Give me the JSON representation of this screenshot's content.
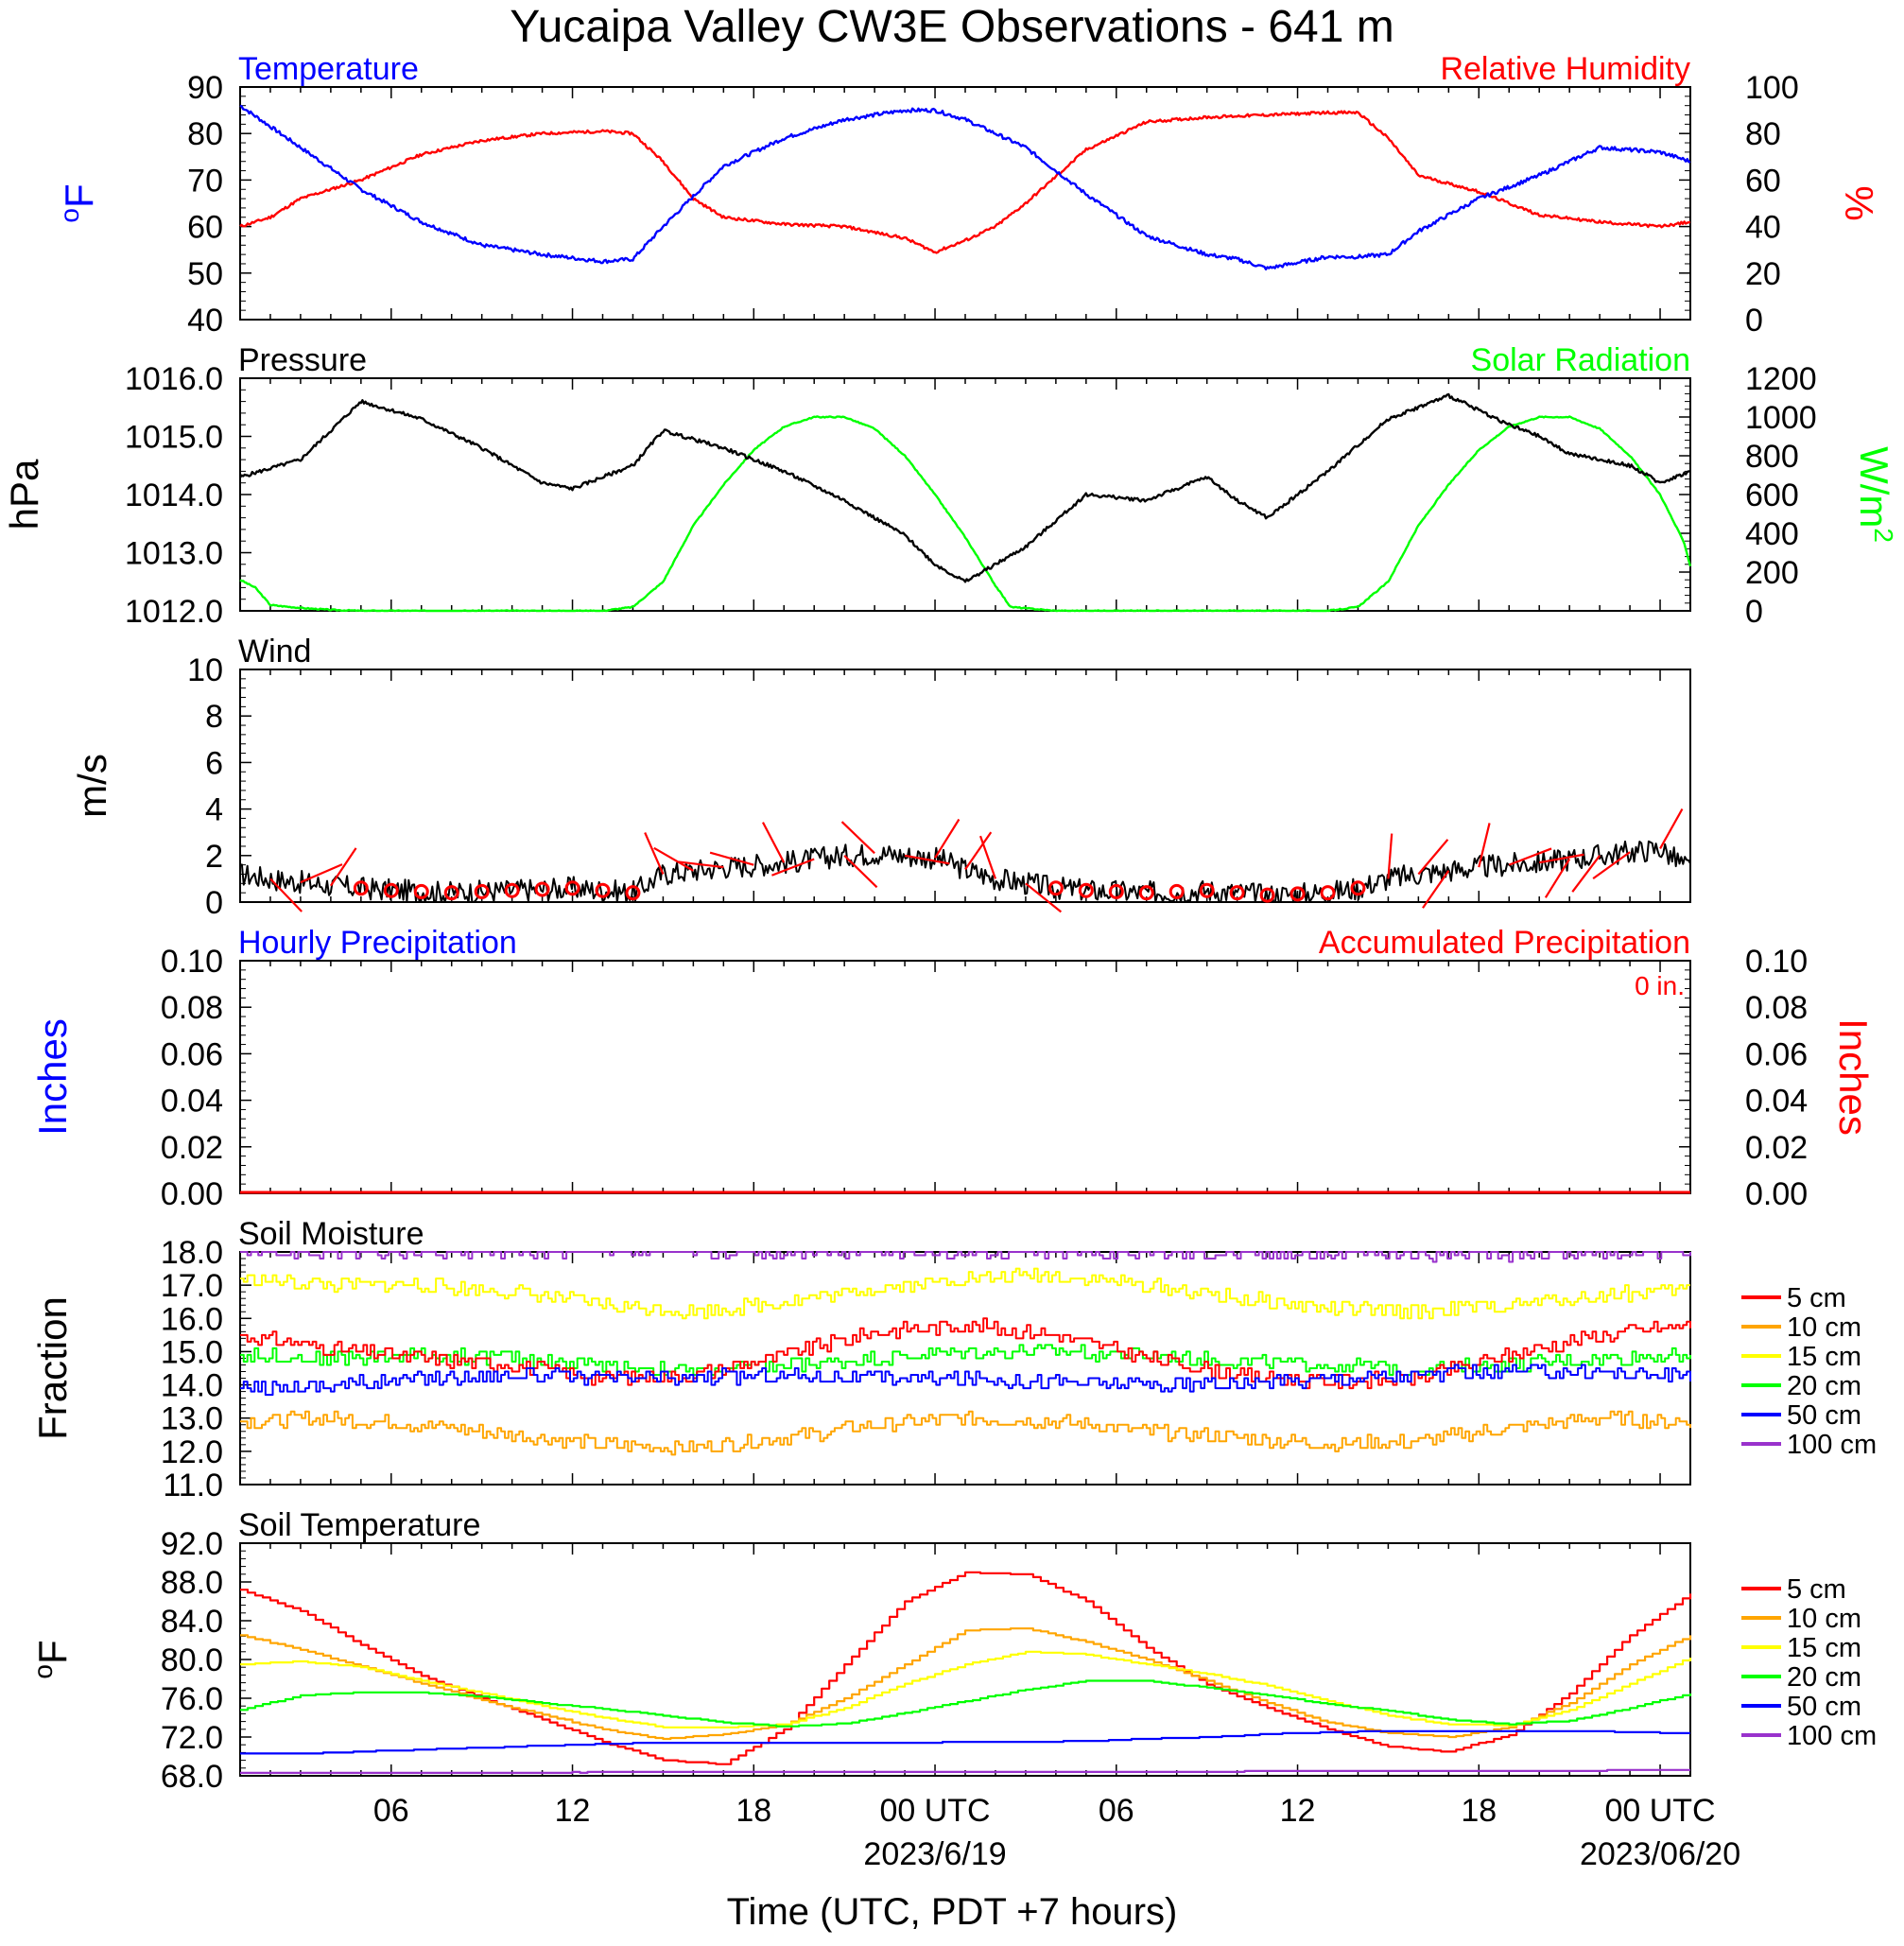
{
  "title": "Yucaipa Valley CW3E Observations - 641 m",
  "x_axis": {
    "label": "Time (UTC, PDT +7 hours)",
    "tick_labels": [
      "06",
      "12",
      "18",
      "00 UTC",
      "06",
      "12",
      "18",
      "00 UTC"
    ],
    "tick_hours": [
      6,
      12,
      18,
      24,
      30,
      36,
      42,
      48
    ],
    "date_labels": [
      "2023/6/19",
      "2023/06/20"
    ],
    "date_hours": [
      24,
      48
    ],
    "range_hours": [
      1,
      49
    ]
  },
  "colors": {
    "temperature": "#0000ff",
    "humidity": "#ff0000",
    "pressure": "#000000",
    "solar": "#00ff00",
    "wind": "#000000",
    "wind_barb": "#ff0000",
    "depth_5cm": "#ff0000",
    "depth_10cm": "#ffa500",
    "depth_15cm": "#ffff00",
    "depth_20cm": "#00ff00",
    "depth_50cm": "#0000ff",
    "depth_100cm": "#9932cc"
  },
  "panels": {
    "temp_rh": {
      "left_title": "Temperature",
      "right_title": "Relative Humidity",
      "left_unit": "F",
      "left_unit_sup": "o",
      "right_unit": "%",
      "left_ticks": [
        "90",
        "80",
        "70",
        "60",
        "50",
        "40"
      ],
      "right_ticks": [
        "100",
        "80",
        "60",
        "40",
        "20",
        "0"
      ]
    },
    "pressure_solar": {
      "left_title": "Pressure",
      "right_title": "Solar Radiation",
      "left_unit": "hPa",
      "right_unit": "W/m",
      "right_unit_sup": "2",
      "left_ticks": [
        "1016.0",
        "1015.0",
        "1014.0",
        "1013.0",
        "1012.0"
      ],
      "right_ticks": [
        "1200",
        "1000",
        "800",
        "600",
        "400",
        "200",
        "0"
      ]
    },
    "wind": {
      "left_title": "Wind",
      "left_unit": "m/s",
      "left_ticks": [
        "10",
        "8",
        "6",
        "4",
        "2",
        "0"
      ]
    },
    "precip": {
      "left_title": "Hourly Precipitation",
      "right_title": "Accumulated Precipitation",
      "total_label": "0 in.",
      "left_unit": "Inches",
      "right_unit": "Inches",
      "left_ticks": [
        "0.10",
        "0.08",
        "0.06",
        "0.04",
        "0.02",
        "0.00"
      ],
      "right_ticks": [
        "0.10",
        "0.08",
        "0.06",
        "0.04",
        "0.02",
        "0.00"
      ]
    },
    "soil_moisture": {
      "left_title": "Soil Moisture",
      "left_unit": "Fraction",
      "left_ticks": [
        "18.0",
        "17.0",
        "16.0",
        "15.0",
        "14.0",
        "13.0",
        "12.0",
        "11.0"
      ],
      "legend": [
        "5 cm",
        "10 cm",
        "15 cm",
        "20 cm",
        "50 cm",
        "100 cm"
      ]
    },
    "soil_temp": {
      "left_title": "Soil Temperature",
      "left_unit": "F",
      "left_unit_sup": "o",
      "left_ticks": [
        "92.0",
        "88.0",
        "84.0",
        "80.0",
        "76.0",
        "72.0",
        "68.0"
      ],
      "legend": [
        "5 cm",
        "10 cm",
        "15 cm",
        "20 cm",
        "50 cm",
        "100 cm"
      ]
    }
  },
  "chart_data": [
    {
      "type": "line",
      "panel": "temp_rh",
      "title": "Temperature",
      "ylabel": "F",
      "ylim": [
        40,
        90
      ],
      "series": [
        {
          "name": "Temperature",
          "x": [
            1,
            3,
            5,
            7,
            9,
            11,
            13,
            14,
            15,
            17,
            19,
            21,
            23,
            24,
            25,
            27,
            29,
            31,
            33,
            34,
            35,
            37,
            38,
            39,
            40,
            42,
            44,
            46,
            48,
            49
          ],
          "values": [
            86,
            77,
            68,
            61,
            56,
            54,
            52.5,
            53,
            60,
            73,
            79,
            83,
            85,
            85,
            83,
            77,
            67,
            58,
            54,
            53,
            51,
            53.5,
            53.5,
            54,
            59,
            66,
            71,
            77,
            76,
            74
          ]
        }
      ]
    },
    {
      "type": "line",
      "panel": "temp_rh",
      "title": "Relative Humidity",
      "ylabel": "%",
      "ylim": [
        0,
        100
      ],
      "series": [
        {
          "name": "Relative Humidity",
          "x": [
            1,
            2,
            3,
            5,
            7,
            9,
            11,
            13,
            14,
            15,
            16,
            17,
            19,
            21,
            23,
            24,
            25,
            26,
            27,
            29,
            31,
            33,
            35,
            37,
            38,
            39,
            40,
            42,
            44,
            46,
            48,
            49
          ],
          "values": [
            40,
            44,
            52,
            60,
            71,
            77,
            80,
            81,
            80,
            68,
            52,
            44,
            41,
            40,
            35,
            29,
            34,
            40,
            50,
            73,
            85,
            87,
            88,
            89,
            89,
            78,
            62,
            55,
            45,
            42,
            40,
            42
          ]
        }
      ]
    },
    {
      "type": "line",
      "panel": "pressure_solar",
      "title": "Pressure",
      "ylabel": "hPa",
      "ylim": [
        1012,
        1016
      ],
      "series": [
        {
          "name": "Pressure",
          "x": [
            1,
            3,
            5,
            7,
            9,
            11,
            12,
            13,
            14,
            15,
            17,
            19,
            21,
            23,
            24,
            25,
            27,
            29,
            31,
            33,
            34,
            35,
            37,
            39,
            41,
            43,
            44,
            45,
            47,
            48,
            49
          ],
          "values": [
            1014.3,
            1014.6,
            1015.6,
            1015.3,
            1014.8,
            1014.2,
            1014.1,
            1014.3,
            1014.5,
            1015.1,
            1014.8,
            1014.4,
            1013.9,
            1013.3,
            1012.8,
            1012.5,
            1013.1,
            1014,
            1013.9,
            1014.3,
            1013.9,
            1013.6,
            1014.4,
            1015.3,
            1015.7,
            1015.2,
            1015,
            1014.7,
            1014.5,
            1014.2,
            1014.4
          ]
        }
      ]
    },
    {
      "type": "line",
      "panel": "pressure_solar",
      "title": "Solar Radiation",
      "ylabel": "W/m2",
      "ylim": [
        0,
        1200
      ],
      "series": [
        {
          "name": "Solar Radiation",
          "x": [
            1,
            1.5,
            2,
            3,
            4,
            5,
            10,
            13,
            14,
            15,
            16,
            17,
            18,
            19,
            20,
            21,
            22,
            23,
            24,
            25,
            26,
            26.5,
            28,
            30,
            35,
            36,
            37,
            38,
            39,
            40,
            41,
            42,
            43,
            44,
            45,
            46,
            47,
            48,
            48.8,
            49
          ],
          "values": [
            160,
            120,
            30,
            15,
            5,
            0,
            0,
            0,
            20,
            150,
            440,
            650,
            830,
            950,
            1000,
            1000,
            940,
            800,
            600,
            380,
            130,
            20,
            0,
            0,
            0,
            0,
            0,
            20,
            150,
            440,
            650,
            830,
            950,
            1000,
            1000,
            940,
            800,
            600,
            350,
            230
          ]
        }
      ]
    },
    {
      "type": "line",
      "panel": "wind",
      "title": "Wind",
      "ylabel": "m/s",
      "ylim": [
        0,
        10
      ],
      "series": [
        {
          "name": "Wind speed",
          "x": [
            1,
            2,
            4,
            6,
            8,
            10,
            12,
            13,
            14,
            15,
            17,
            19,
            21,
            22,
            23,
            24,
            25,
            26,
            27,
            28,
            29,
            31,
            33,
            35,
            37,
            38,
            39,
            40,
            42,
            44,
            46,
            48,
            49
          ],
          "values": [
            1.2,
            1.0,
            0.7,
            0.5,
            0.4,
            0.5,
            0.6,
            0.5,
            0.4,
            1.2,
            1.5,
            1.7,
            2.0,
            2.1,
            2.0,
            1.9,
            1.4,
            1.0,
            0.8,
            0.6,
            0.5,
            0.4,
            0.5,
            0.3,
            0.4,
            0.6,
            1.0,
            1.2,
            1.5,
            1.7,
            2.0,
            2.3,
            1.4
          ]
        }
      ]
    },
    {
      "type": "bar",
      "panel": "precip",
      "title": "Hourly Precipitation",
      "ylabel": "Inches",
      "ylim": [
        0,
        0.1
      ],
      "series": [
        {
          "name": "Hourly Precipitation",
          "values": [
            0
          ]
        },
        {
          "name": "Accumulated Precipitation",
          "values": [
            0
          ]
        }
      ]
    },
    {
      "type": "line",
      "panel": "soil_moisture",
      "title": "Soil Moisture",
      "ylabel": "Fraction",
      "ylim": [
        11,
        18
      ],
      "x": [
        1,
        4,
        7,
        10,
        13,
        16,
        19,
        22,
        25,
        28,
        31,
        34,
        37,
        40,
        43,
        46,
        49
      ],
      "series": [
        {
          "name": "5 cm",
          "values": [
            15.5,
            15.1,
            14.8,
            14.6,
            14.2,
            14.3,
            14.9,
            15.6,
            15.8,
            15.5,
            14.8,
            14.3,
            14.1,
            14.2,
            14.9,
            15.5,
            15.8
          ]
        },
        {
          "name": "10 cm",
          "values": [
            12.9,
            13.0,
            12.8,
            12.5,
            12.2,
            12.1,
            12.4,
            12.8,
            13.0,
            12.9,
            12.6,
            12.4,
            12.2,
            12.3,
            12.7,
            13.0,
            12.9
          ]
        },
        {
          "name": "15 cm",
          "values": [
            17.2,
            17.0,
            17.0,
            16.8,
            16.4,
            16.2,
            16.5,
            16.9,
            17.2,
            17.3,
            17.0,
            16.6,
            16.3,
            16.2,
            16.4,
            16.7,
            16.9
          ]
        },
        {
          "name": "20 cm",
          "values": [
            14.9,
            14.8,
            14.9,
            14.8,
            14.6,
            14.4,
            14.6,
            14.8,
            15.0,
            15.0,
            14.9,
            14.7,
            14.6,
            14.5,
            14.6,
            14.8,
            14.9
          ]
        },
        {
          "name": "50 cm",
          "values": [
            13.9,
            14.0,
            14.2,
            14.3,
            14.2,
            14.2,
            14.3,
            14.2,
            14.2,
            14.1,
            14.0,
            14.0,
            14.2,
            14.3,
            14.4,
            14.4,
            14.3
          ]
        },
        {
          "name": "100 cm",
          "values": [
            18.0,
            18.0,
            18.0,
            18.0,
            18.0,
            18.0,
            18.0,
            18.0,
            18.0,
            18.0,
            18.0,
            18.0,
            17.95,
            17.95,
            17.95,
            18.0,
            18.0
          ]
        }
      ]
    },
    {
      "type": "line",
      "panel": "soil_temp",
      "title": "Soil Temperature",
      "ylabel": "F",
      "ylim": [
        68,
        92
      ],
      "x": [
        1,
        3,
        5,
        7,
        9,
        11,
        13,
        15,
        17,
        19,
        21,
        23,
        25,
        27,
        29,
        31,
        33,
        35,
        37,
        39,
        41,
        43,
        45,
        47,
        49
      ],
      "series": [
        {
          "name": "5 cm",
          "values": [
            87.2,
            85,
            81.5,
            78.3,
            76,
            73.8,
            71.5,
            69.6,
            69.2,
            72.8,
            79.5,
            86,
            89,
            88.8,
            86,
            81.2,
            77.4,
            75,
            72.8,
            71,
            70.5,
            72.2,
            76.5,
            82.5,
            86.8
          ]
        },
        {
          "name": "10 cm",
          "values": [
            82.5,
            81,
            79.3,
            77.5,
            75.8,
            74.3,
            72.8,
            71.8,
            72.3,
            73.2,
            76,
            79.5,
            83,
            83.2,
            81.8,
            80,
            77.8,
            75.5,
            73.5,
            72.4,
            72,
            73,
            75.5,
            79.5,
            82.5
          ]
        },
        {
          "name": "15 cm",
          "values": [
            79.5,
            79.8,
            79.2,
            77.8,
            76.5,
            75.2,
            74,
            73,
            73,
            73.3,
            75,
            77.5,
            79.5,
            80.8,
            80.5,
            79.5,
            78.5,
            77.3,
            75.7,
            74.2,
            73.3,
            73.2,
            74.8,
            77.5,
            80.2
          ]
        },
        {
          "name": "20 cm",
          "values": [
            74.8,
            76.3,
            76.6,
            76.6,
            76.2,
            75.5,
            74.9,
            74.2,
            73.5,
            73.1,
            73.4,
            74.5,
            75.7,
            76.9,
            77.8,
            77.8,
            77.1,
            76.3,
            75.4,
            74.7,
            73.8,
            73.3,
            73.7,
            75,
            76.5
          ]
        },
        {
          "name": "50 cm",
          "values": [
            70.3,
            70.3,
            70.5,
            70.7,
            70.9,
            71.1,
            71.3,
            71.4,
            71.4,
            71.4,
            71.4,
            71.4,
            71.5,
            71.5,
            71.6,
            71.8,
            72,
            72.3,
            72.5,
            72.6,
            72.6,
            72.6,
            72.6,
            72.5,
            72.4
          ]
        },
        {
          "name": "100 cm",
          "values": [
            68.3,
            68.3,
            68.3,
            68.3,
            68.3,
            68.3,
            68.4,
            68.4,
            68.4,
            68.4,
            68.4,
            68.4,
            68.4,
            68.4,
            68.4,
            68.4,
            68.4,
            68.5,
            68.5,
            68.5,
            68.5,
            68.5,
            68.5,
            68.6,
            68.6
          ]
        }
      ]
    }
  ]
}
